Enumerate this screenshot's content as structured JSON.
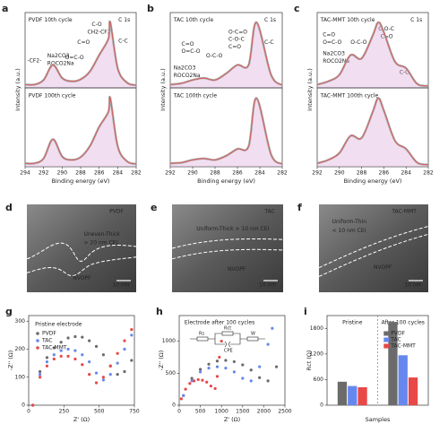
{
  "chart_data": [
    {
      "type": "line",
      "panel": "a",
      "ylabel": "Intensity (a.u.)",
      "xlim": [
        294,
        282
      ],
      "ylim": [
        0,
        1.15
      ],
      "x": [
        294,
        293,
        292,
        291,
        290,
        289,
        288,
        287,
        286,
        285,
        284.8,
        284,
        283,
        282
      ],
      "series": [
        {
          "name": "PVDF 10th cycle",
          "color": "#e05050",
          "values": [
            0.05,
            0.05,
            0.12,
            0.35,
            0.15,
            0.1,
            0.13,
            0.25,
            0.5,
            0.75,
            1.0,
            0.3,
            0.08,
            0.04
          ]
        }
      ],
      "annotations": [
        {
          "text": "PVDF 10th cycle",
          "color": "#888"
        },
        {
          "text": "C 1s",
          "color": "#222"
        },
        {
          "text": "Na2CO3",
          "color": "#223399"
        },
        {
          "text": "ROCO2Na",
          "color": "#223399"
        },
        {
          "text": "C-O",
          "color": "#c8a000"
        },
        {
          "text": "CH2-CF2",
          "color": "#8a8a20"
        },
        {
          "text": "C=O",
          "color": "#2a9a3a"
        },
        {
          "text": "O=C-O",
          "color": "#3b6fe0"
        },
        {
          "text": "C-C",
          "color": "#e08a20"
        },
        {
          "text": "-CF2-",
          "color": "#c030c0"
        }
      ]
    },
    {
      "type": "line",
      "xlabel": "Binding energy (eV)",
      "xlim": [
        294,
        282
      ],
      "ylim": [
        0,
        1.15
      ],
      "xticks": [
        294,
        292,
        290,
        288,
        286,
        284,
        282
      ],
      "x": [
        294,
        293,
        292,
        291,
        290,
        289,
        288,
        287,
        286,
        285,
        284.8,
        284,
        283,
        282
      ],
      "series": [
        {
          "name": "PVDF 100th cycle",
          "color": "#e05050",
          "values": [
            0.05,
            0.05,
            0.12,
            0.4,
            0.15,
            0.1,
            0.14,
            0.3,
            0.58,
            0.8,
            1.0,
            0.3,
            0.08,
            0.04
          ]
        }
      ],
      "annotations": [
        {
          "text": "PVDF 100th cycle",
          "color": "#888"
        }
      ]
    },
    {
      "type": "line",
      "panel": "b",
      "ylabel": "Intensity (a.u.)",
      "xlim": [
        292,
        282
      ],
      "ylim": [
        0,
        1.15
      ],
      "x": [
        292,
        291,
        290,
        289,
        288,
        287,
        286,
        285,
        284.3,
        283,
        282
      ],
      "series": [
        {
          "name": "TAC 10th cycle",
          "color": "#e05050",
          "values": [
            0.05,
            0.07,
            0.12,
            0.15,
            0.12,
            0.22,
            0.35,
            0.35,
            1.0,
            0.2,
            0.04
          ]
        }
      ],
      "annotations": [
        {
          "text": "TAC 10th cycle",
          "color": "#5577ee"
        },
        {
          "text": "C 1s",
          "color": "#222"
        },
        {
          "text": "O-C=O",
          "color": "#2a9a3a"
        },
        {
          "text": "C-O-C",
          "color": "#2a9a3a"
        },
        {
          "text": "C=O",
          "color": "#2a9a3a"
        },
        {
          "text": "C=O",
          "color": "#3b6fe0"
        },
        {
          "text": "O=C-O",
          "color": "#3b6fe0"
        },
        {
          "text": "O-C-O",
          "color": "#666"
        },
        {
          "text": "Na2CO3",
          "color": "#223399"
        },
        {
          "text": "ROCO2Na",
          "color": "#223399"
        },
        {
          "text": "C-C",
          "color": "#e08a20"
        }
      ]
    },
    {
      "type": "line",
      "xlabel": "Binding energy (eV)",
      "xlim": [
        292,
        282
      ],
      "ylim": [
        0,
        1.15
      ],
      "xticks": [
        292,
        290,
        288,
        286,
        284,
        282
      ],
      "x": [
        292,
        291,
        290,
        289,
        288,
        287,
        286,
        285,
        284.3,
        283,
        282
      ],
      "series": [
        {
          "name": "TAC 100th cycle",
          "color": "#e05050",
          "values": [
            0.05,
            0.06,
            0.1,
            0.12,
            0.1,
            0.16,
            0.26,
            0.3,
            1.0,
            0.18,
            0.04
          ]
        }
      ],
      "annotations": [
        {
          "text": "TAC 100th cycle",
          "color": "#5577ee"
        }
      ]
    },
    {
      "type": "line",
      "panel": "c",
      "ylabel": "Intensity (a.u.)",
      "xlim": [
        292,
        282
      ],
      "ylim": [
        0,
        1.15
      ],
      "x": [
        292,
        291,
        290,
        289,
        288,
        287,
        286.5,
        286,
        285,
        284,
        283,
        282
      ],
      "series": [
        {
          "name": "TAC-MMT 10th cycle",
          "color": "#e05050",
          "values": [
            0.05,
            0.1,
            0.2,
            0.5,
            0.45,
            0.8,
            1.0,
            0.85,
            0.4,
            0.3,
            0.06,
            0.03
          ]
        }
      ],
      "annotations": [
        {
          "text": "TAC-MMT 10th cycle",
          "color": "#e04040"
        },
        {
          "text": "C 1s",
          "color": "#222"
        },
        {
          "text": "C=O",
          "color": "#3b6fe0"
        },
        {
          "text": "O=C-O",
          "color": "#3b6fe0"
        },
        {
          "text": "Na2CO3",
          "color": "#223399"
        },
        {
          "text": "ROCO2Na",
          "color": "#223399"
        },
        {
          "text": "O-C-O",
          "color": "#666"
        },
        {
          "text": "C-O-C",
          "color": "#2a9a3a"
        },
        {
          "text": "C=O",
          "color": "#2a9a3a"
        },
        {
          "text": "C-C",
          "color": "#e08a20"
        }
      ]
    },
    {
      "type": "line",
      "xlabel": "Binding energy (eV)",
      "xlim": [
        292,
        282
      ],
      "ylim": [
        0,
        1.15
      ],
      "xticks": [
        292,
        290,
        288,
        286,
        284,
        282
      ],
      "x": [
        292,
        291,
        290,
        289,
        288,
        287,
        286.5,
        286,
        285,
        284,
        283,
        282
      ],
      "series": [
        {
          "name": "TAC-MMT 100th cycle",
          "color": "#e05050",
          "values": [
            0.05,
            0.1,
            0.2,
            0.45,
            0.42,
            0.8,
            1.0,
            0.82,
            0.38,
            0.26,
            0.06,
            0.03
          ]
        }
      ],
      "annotations": [
        {
          "text": "TAC-MMT 100th cycle",
          "color": "#e04040"
        }
      ]
    },
    {
      "type": "scatter",
      "panel": "g",
      "xlabel": "Z' (Ω)",
      "ylabel": "-Z'' (Ω)",
      "xlim": [
        0,
        750
      ],
      "ylim": [
        0,
        320
      ],
      "xticks": [
        0,
        250,
        500,
        750
      ],
      "yticks": [
        0,
        100,
        200,
        300
      ],
      "annotations": [
        {
          "text": "Pristine electrode",
          "color": "#222"
        }
      ],
      "series": [
        {
          "name": "PVDF",
          "color": "#6b6b6b",
          "x": [
            30,
            80,
            130,
            180,
            230,
            280,
            330,
            380,
            430,
            480,
            530,
            580,
            630,
            680,
            730
          ],
          "values": [
            0,
            120,
            170,
            205,
            225,
            240,
            245,
            243,
            230,
            210,
            180,
            140,
            110,
            120,
            160
          ]
        },
        {
          "name": "TAC",
          "color": "#6688ee",
          "x": [
            30,
            80,
            130,
            180,
            230,
            280,
            330,
            380,
            430,
            480,
            530,
            580,
            630,
            680,
            730
          ],
          "values": [
            0,
            110,
            155,
            180,
            195,
            200,
            195,
            180,
            155,
            115,
            90,
            110,
            150,
            200,
            250
          ]
        },
        {
          "name": "TAC-MMT",
          "color": "#e84848",
          "x": [
            30,
            80,
            130,
            180,
            230,
            280,
            330,
            380,
            430,
            480,
            530,
            580,
            630,
            680,
            730
          ],
          "values": [
            0,
            100,
            140,
            165,
            175,
            175,
            165,
            145,
            110,
            80,
            100,
            140,
            185,
            230,
            270
          ]
        }
      ]
    },
    {
      "type": "scatter",
      "panel": "h",
      "xlabel": "Z' (Ω)",
      "ylabel": "-Z'' (Ω)",
      "xlim": [
        0,
        2500
      ],
      "ylim": [
        0,
        1400
      ],
      "xticks": [
        0,
        500,
        1000,
        1500,
        2000,
        2500
      ],
      "yticks": [
        0,
        500,
        1000
      ],
      "annotations": [
        {
          "text": "Electrode after 100 cycles",
          "color": "#222"
        }
      ],
      "circuit": [
        "Rs",
        "Rct",
        "CPE",
        "W"
      ],
      "series": [
        {
          "name": "PVDF",
          "color": "#6b6b6b",
          "x": [
            100,
            300,
            500,
            700,
            900,
            1100,
            1300,
            1500,
            1700,
            1900,
            2100,
            2300
          ],
          "values": [
            150,
            420,
            560,
            640,
            690,
            700,
            680,
            630,
            550,
            430,
            380,
            600
          ]
        },
        {
          "name": "TAC",
          "color": "#6688ee",
          "x": [
            100,
            300,
            500,
            700,
            900,
            1100,
            1300,
            1500,
            1700,
            1900,
            2100,
            2200
          ],
          "values": [
            150,
            380,
            520,
            580,
            600,
            580,
            520,
            420,
            380,
            600,
            950,
            1200
          ]
        },
        {
          "name": "TAC-MMT",
          "color": "#e84848",
          "x": [
            50,
            150,
            250,
            350,
            450,
            550,
            650,
            750,
            850,
            900,
            950,
            1000
          ],
          "values": [
            100,
            250,
            340,
            380,
            400,
            390,
            360,
            300,
            260,
            450,
            750,
            1000
          ]
        }
      ]
    },
    {
      "type": "bar",
      "panel": "i",
      "xlabel": "Samples",
      "ylabel": "Rct (Ω)",
      "ylim": [
        0,
        2100
      ],
      "yticks": [
        0,
        600,
        1200,
        1800
      ],
      "categories": [
        "Pristine",
        "After 100 cycles"
      ],
      "series": [
        {
          "name": "PVDF",
          "color": "#6b6b6b",
          "values": [
            550,
            1950
          ]
        },
        {
          "name": "TAC",
          "color": "#6688ee",
          "values": [
            450,
            1170
          ]
        },
        {
          "name": "TAC-MMT",
          "color": "#e84848",
          "values": [
            420,
            650
          ]
        }
      ]
    }
  ],
  "images": [
    {
      "panel": "d",
      "labels": [
        "PVDF",
        "Uneven-Thick",
        "> 20 nm CEI",
        "NVOPF",
        "10 nm"
      ]
    },
    {
      "panel": "e",
      "labels": [
        "TAC",
        "Uniform-Thick > 10 nm CEI",
        "NVOPF",
        "10 nm"
      ]
    },
    {
      "panel": "f",
      "labels": [
        "TAC-MMT",
        "Uniform-Thin",
        "< 10 nm CEI",
        "NVOPF",
        "10 nm"
      ]
    }
  ]
}
